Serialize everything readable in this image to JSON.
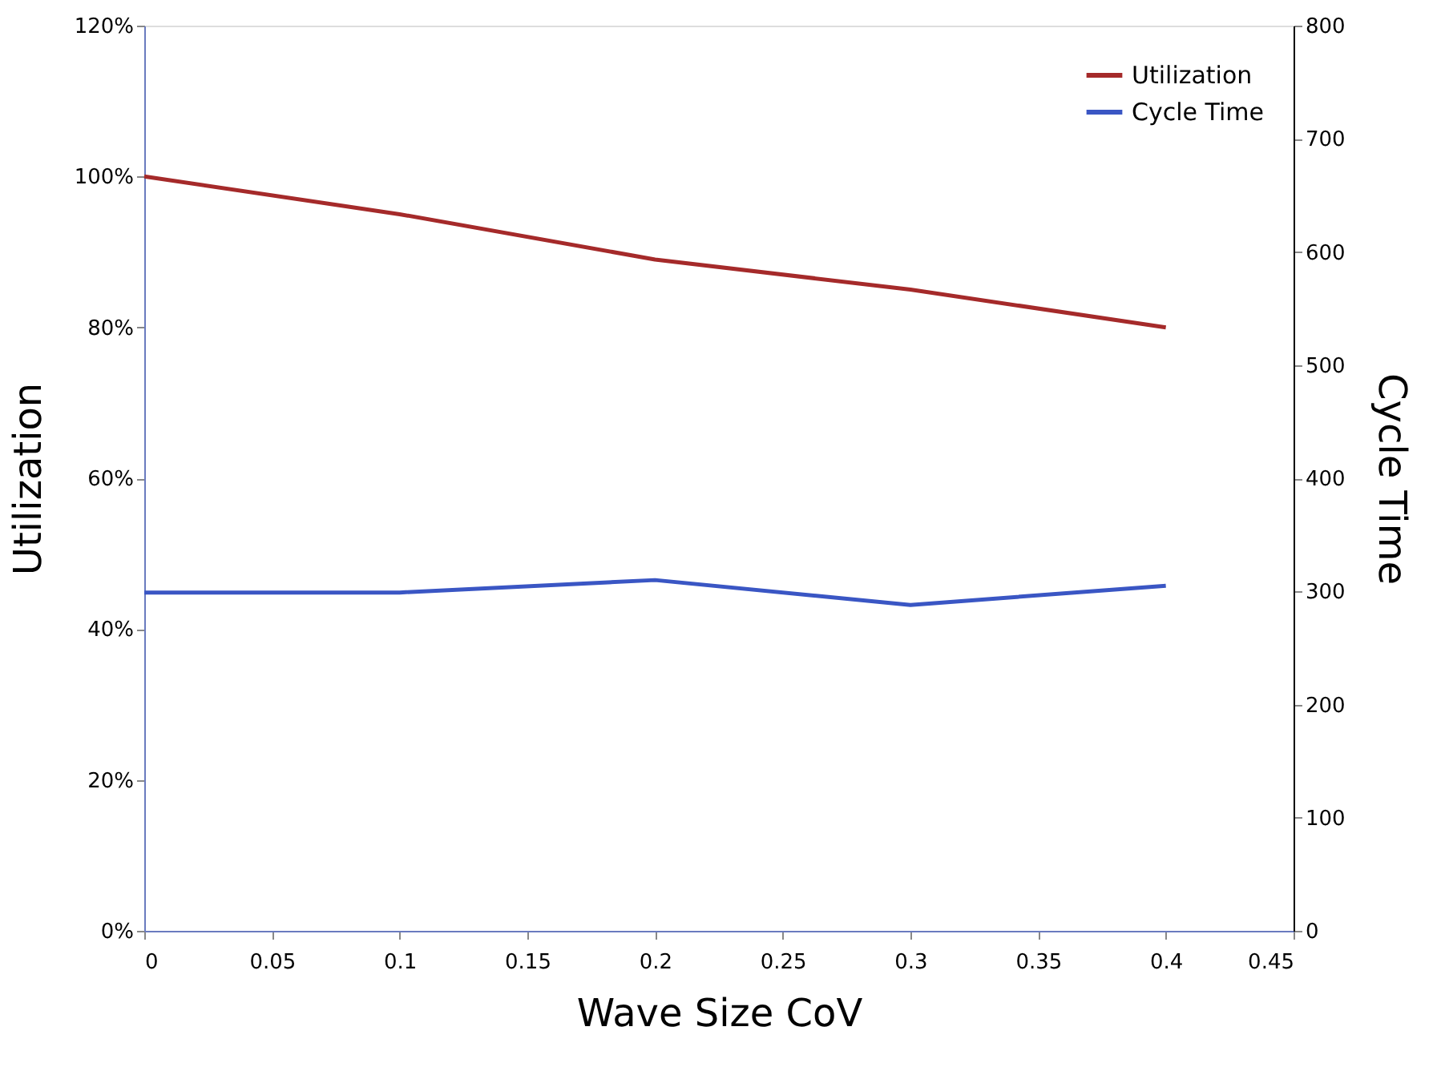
{
  "chart_data": {
    "type": "line",
    "xlabel": "Wave Size CoV",
    "ylabel": "Utilization",
    "y2label": "Cycle Time",
    "x": [
      0,
      0.1,
      0.2,
      0.3,
      0.4
    ],
    "series": [
      {
        "name": "Utilization",
        "color": "#a52a2a",
        "values": [
          100,
          95,
          89,
          85,
          80
        ]
      },
      {
        "name": "Cycle Time",
        "color": "#3a56c4",
        "axis": "y2",
        "values": [
          299,
          299,
          310,
          288,
          305
        ]
      }
    ],
    "xlim": [
      0,
      0.45
    ],
    "xticks": [
      0,
      0.05,
      0.1,
      0.15,
      0.2,
      0.25,
      0.3,
      0.35,
      0.4,
      0.45
    ],
    "ylim": [
      0,
      120
    ],
    "yticks": [
      {
        "value": 0,
        "label": "0%"
      },
      {
        "value": 20,
        "label": "20%"
      },
      {
        "value": 40,
        "label": "40%"
      },
      {
        "value": 60,
        "label": "60%"
      },
      {
        "value": 80,
        "label": "80%"
      },
      {
        "value": 100,
        "label": "100%"
      },
      {
        "value": 120,
        "label": "120%"
      }
    ],
    "y2lim": [
      0,
      800
    ],
    "y2ticks": [
      0,
      100,
      200,
      300,
      400,
      500,
      600,
      700,
      800
    ],
    "grid": false,
    "legend": "top right",
    "marker": "none",
    "line_style": "solid"
  }
}
